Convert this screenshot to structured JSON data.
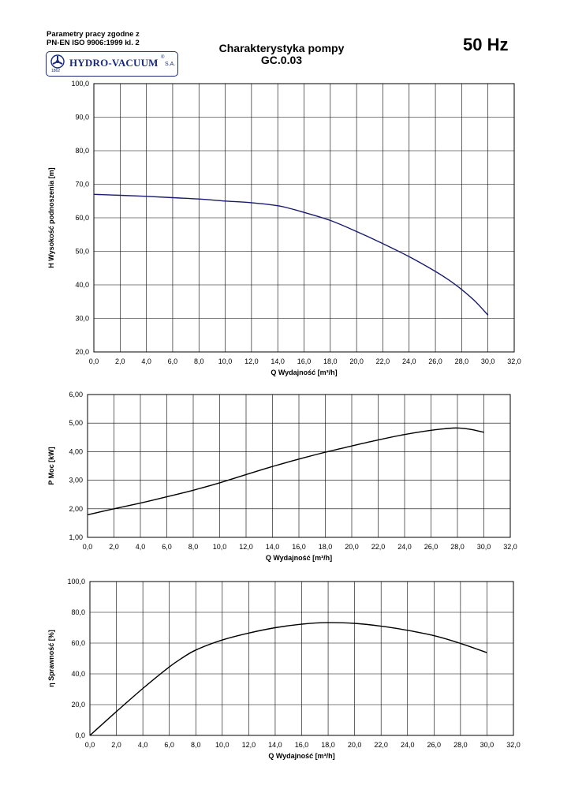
{
  "header": {
    "standard_line1": "Parametry pracy zgodne z",
    "standard_line2": "PN-EN ISO 9906:1999 kl. 2",
    "logo_name": "HYDRO-VACUUM",
    "logo_suffix": "S.A.",
    "logo_year": "1862",
    "title_line1": "Charakterystyka pompy",
    "title_line2": "GC.0.03",
    "frequency": "50 Hz"
  },
  "colors": {
    "h_curve": "#1a1a6e",
    "curve": "#000000",
    "grid": "#000000"
  },
  "chart_data": [
    {
      "id": "h",
      "type": "line",
      "title": "",
      "xlabel": "Q Wydajność [m³/h]",
      "ylabel": "H  Wysokość podnoszenia [m]",
      "xlim": [
        0,
        32
      ],
      "ylim": [
        20,
        100
      ],
      "xticks": [
        "0,0",
        "2,0",
        "4,0",
        "6,0",
        "8,0",
        "10,0",
        "12,0",
        "14,0",
        "16,0",
        "18,0",
        "20,0",
        "22,0",
        "24,0",
        "26,0",
        "28,0",
        "30,0",
        "32,0"
      ],
      "yticks": [
        "20,0",
        "30,0",
        "40,0",
        "50,0",
        "60,0",
        "70,0",
        "80,0",
        "90,0",
        "100,0"
      ],
      "grid": true,
      "series": [
        {
          "x": [
            0,
            2,
            4,
            6,
            8,
            10,
            12,
            14,
            15,
            16,
            18,
            20,
            22,
            24,
            26,
            27,
            28,
            29,
            30
          ],
          "y": [
            67,
            66.7,
            66.4,
            66.0,
            65.6,
            65.0,
            64.5,
            63.6,
            62.7,
            61.6,
            59.2,
            55.9,
            52.3,
            48.4,
            44.0,
            41.5,
            38.6,
            35.2,
            31.0
          ]
        }
      ]
    },
    {
      "id": "p",
      "type": "line",
      "title": "",
      "xlabel": "Q Wydajność [m³/h]",
      "ylabel": "P  Moc [kW]",
      "xlim": [
        0,
        32
      ],
      "ylim": [
        1,
        6
      ],
      "xticks": [
        "0,0",
        "2,0",
        "4,0",
        "6,0",
        "8,0",
        "10,0",
        "12,0",
        "14,0",
        "16,0",
        "18,0",
        "20,0",
        "22,0",
        "24,0",
        "26,0",
        "28,0",
        "30,0",
        "32,0"
      ],
      "yticks": [
        "1,00",
        "2,00",
        "3,00",
        "4,00",
        "5,00",
        "6,00"
      ],
      "grid": true,
      "series": [
        {
          "x": [
            0,
            2,
            4,
            6,
            8,
            10,
            12,
            14,
            16,
            18,
            20,
            22,
            24,
            26,
            27,
            28,
            29,
            30
          ],
          "y": [
            1.79,
            2.0,
            2.2,
            2.42,
            2.65,
            2.91,
            3.2,
            3.48,
            3.74,
            3.98,
            4.2,
            4.41,
            4.6,
            4.75,
            4.8,
            4.83,
            4.78,
            4.68
          ]
        }
      ]
    },
    {
      "id": "eta",
      "type": "line",
      "title": "",
      "xlabel": "Q Wydajność [m³/h]",
      "ylabel": "η Sprawność [%]",
      "xlim": [
        0,
        32
      ],
      "ylim": [
        0,
        100
      ],
      "xticks": [
        "0,0",
        "2,0",
        "4,0",
        "6,0",
        "8,0",
        "10,0",
        "12,0",
        "14,0",
        "16,0",
        "18,0",
        "20,0",
        "22,0",
        "24,0",
        "26,0",
        "28,0",
        "30,0",
        "32,0"
      ],
      "yticks": [
        "0,0",
        "20,0",
        "40,0",
        "60,0",
        "80,0",
        "100,0"
      ],
      "grid": true,
      "series": [
        {
          "x": [
            0,
            2,
            4,
            6,
            7,
            8,
            10,
            12,
            14,
            16,
            18,
            20,
            22,
            24,
            26,
            28,
            30
          ],
          "y": [
            0,
            15.5,
            30.5,
            44.5,
            50.5,
            55.5,
            62.0,
            66.5,
            70.0,
            72.3,
            73.3,
            72.8,
            71.0,
            68.3,
            64.8,
            59.8,
            53.8
          ]
        }
      ]
    }
  ]
}
